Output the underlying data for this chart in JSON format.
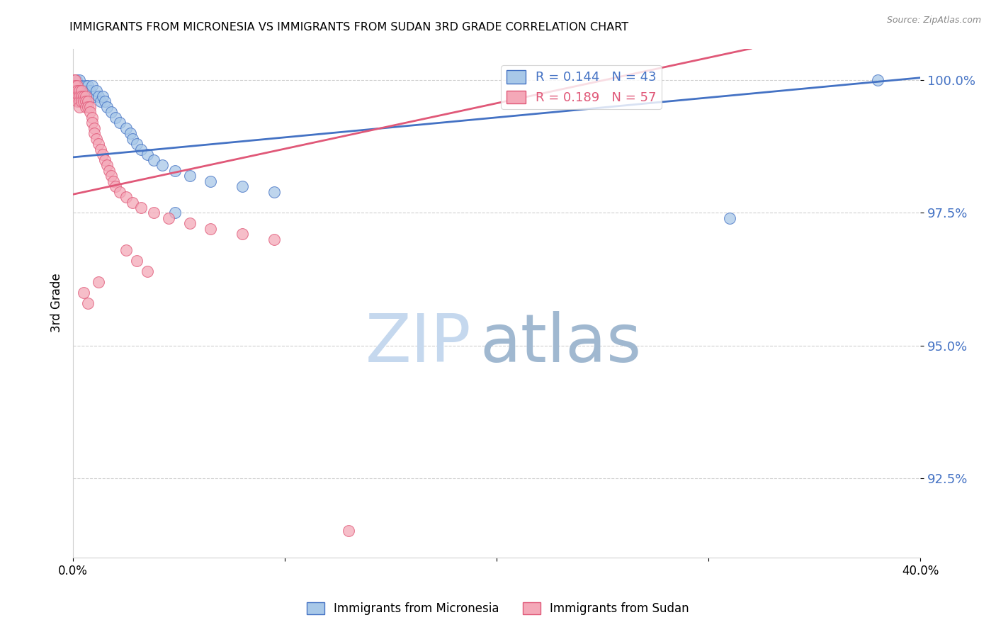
{
  "title": "IMMIGRANTS FROM MICRONESIA VS IMMIGRANTS FROM SUDAN 3RD GRADE CORRELATION CHART",
  "source": "Source: ZipAtlas.com",
  "ylabel": "3rd Grade",
  "xlim": [
    0.0,
    0.4
  ],
  "ylim": [
    0.91,
    1.006
  ],
  "ytick_values": [
    0.925,
    0.95,
    0.975,
    1.0
  ],
  "color_micronesia": "#a8c8e8",
  "color_sudan": "#f4a8b8",
  "line_color_micronesia": "#4472c4",
  "line_color_sudan": "#e05878",
  "R_micronesia": 0.144,
  "N_micronesia": 43,
  "R_sudan": 0.189,
  "N_sudan": 57,
  "blue_line_x0": 0.0,
  "blue_line_y0": 0.9855,
  "blue_line_x1": 0.4,
  "blue_line_y1": 1.0005,
  "pink_line_x0": 0.0,
  "pink_line_y0": 0.9785,
  "pink_line_x1": 0.32,
  "pink_line_y1": 1.006,
  "mic_x": [
    0.0008,
    0.0012,
    0.0015,
    0.002,
    0.002,
    0.003,
    0.003,
    0.004,
    0.004,
    0.005,
    0.005,
    0.006,
    0.006,
    0.007,
    0.007,
    0.008,
    0.009,
    0.01,
    0.011,
    0.012,
    0.013,
    0.014,
    0.015,
    0.016,
    0.018,
    0.02,
    0.022,
    0.025,
    0.027,
    0.028,
    0.03,
    0.032,
    0.035,
    0.038,
    0.042,
    0.048,
    0.055,
    0.065,
    0.08,
    0.095,
    0.048,
    0.31,
    0.38
  ],
  "mic_y": [
    0.999,
    0.998,
    1.0,
    0.999,
    0.997,
    1.0,
    0.999,
    0.998,
    0.999,
    0.998,
    0.997,
    0.999,
    0.998,
    0.999,
    0.997,
    0.998,
    0.999,
    0.997,
    0.998,
    0.997,
    0.996,
    0.997,
    0.996,
    0.995,
    0.994,
    0.993,
    0.992,
    0.991,
    0.99,
    0.989,
    0.988,
    0.987,
    0.986,
    0.985,
    0.984,
    0.983,
    0.982,
    0.981,
    0.98,
    0.979,
    0.975,
    0.974,
    1.0
  ],
  "sud_x": [
    0.0005,
    0.0008,
    0.001,
    0.001,
    0.001,
    0.001,
    0.002,
    0.002,
    0.002,
    0.002,
    0.003,
    0.003,
    0.003,
    0.003,
    0.004,
    0.004,
    0.004,
    0.005,
    0.005,
    0.006,
    0.006,
    0.006,
    0.007,
    0.007,
    0.008,
    0.008,
    0.009,
    0.009,
    0.01,
    0.01,
    0.011,
    0.012,
    0.013,
    0.014,
    0.015,
    0.016,
    0.017,
    0.018,
    0.019,
    0.02,
    0.022,
    0.025,
    0.028,
    0.032,
    0.038,
    0.045,
    0.055,
    0.065,
    0.08,
    0.095,
    0.025,
    0.03,
    0.035,
    0.012,
    0.005,
    0.007,
    0.13
  ],
  "sud_y": [
    1.0,
    0.999,
    1.0,
    0.999,
    0.998,
    0.997,
    0.999,
    0.998,
    0.997,
    0.996,
    0.998,
    0.997,
    0.996,
    0.995,
    0.998,
    0.997,
    0.996,
    0.997,
    0.996,
    0.997,
    0.996,
    0.995,
    0.996,
    0.995,
    0.995,
    0.994,
    0.993,
    0.992,
    0.991,
    0.99,
    0.989,
    0.988,
    0.987,
    0.986,
    0.985,
    0.984,
    0.983,
    0.982,
    0.981,
    0.98,
    0.979,
    0.978,
    0.977,
    0.976,
    0.975,
    0.974,
    0.973,
    0.972,
    0.971,
    0.97,
    0.968,
    0.966,
    0.964,
    0.962,
    0.96,
    0.958,
    0.915
  ],
  "watermark_zip": "ZIP",
  "watermark_atlas": "atlas"
}
